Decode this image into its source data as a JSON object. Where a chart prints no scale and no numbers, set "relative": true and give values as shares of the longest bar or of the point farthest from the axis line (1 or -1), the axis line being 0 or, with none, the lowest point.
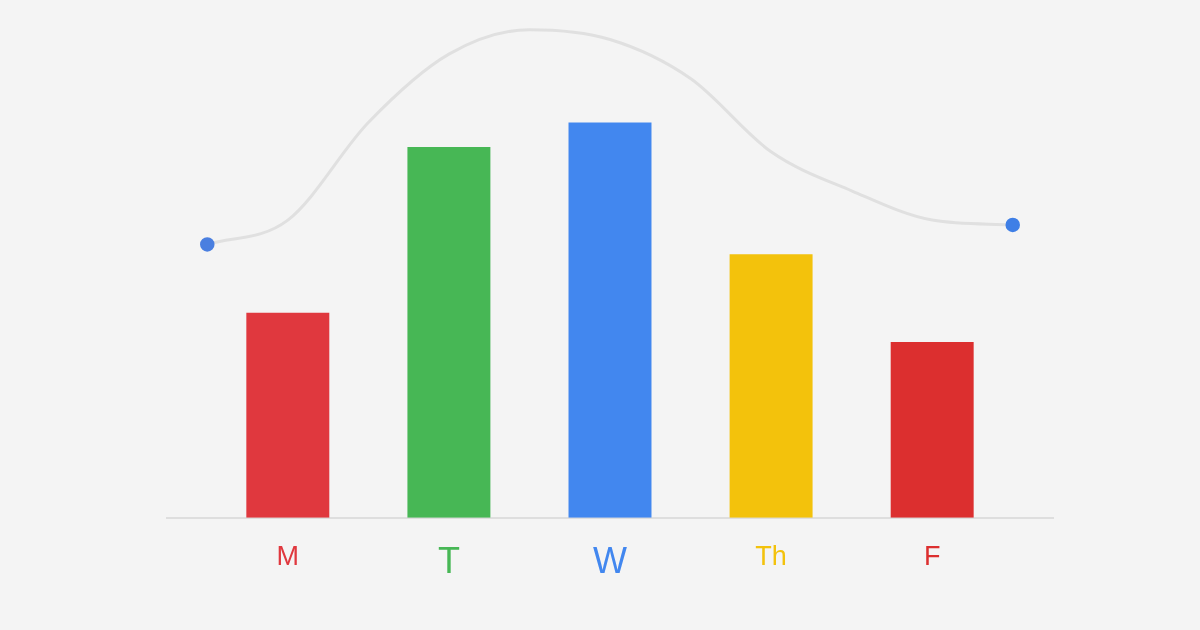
{
  "chart_data": {
    "type": "bar",
    "relative": true,
    "categories": [
      null,
      "M",
      null,
      "T",
      null,
      "W",
      null,
      "Th",
      null,
      "F",
      null
    ],
    "series": [
      {
        "colors": [
          null,
          "#e0383e",
          null,
          "#47b755",
          null,
          "#4287ef",
          null,
          "#f3c20c",
          null,
          "#dc2f2f",
          null
        ],
        "values": [
          null,
          0.42,
          null,
          0.76,
          null,
          0.81,
          null,
          0.54,
          null,
          0.36,
          null
        ]
      },
      {
        "type": "line",
        "color": "#e0e0e0",
        "marker": "none",
        "values": [
          0.56,
          0.61,
          0.81,
          0.95,
          1.0,
          0.98,
          0.9,
          0.75,
          0.67,
          0.61,
          0.6
        ]
      },
      {
        "type": "scatter",
        "color": "#4a7fe0",
        "marker": "circle",
        "values": [
          0.56,
          null,
          null,
          null,
          null,
          null,
          null,
          null,
          null,
          null,
          null
        ]
      },
      {
        "type": "scatter",
        "color": "#3f7fe6",
        "marker": "circle",
        "values": [
          null,
          null,
          null,
          null,
          null,
          null,
          null,
          null,
          null,
          null,
          0.6
        ]
      }
    ]
  }
}
